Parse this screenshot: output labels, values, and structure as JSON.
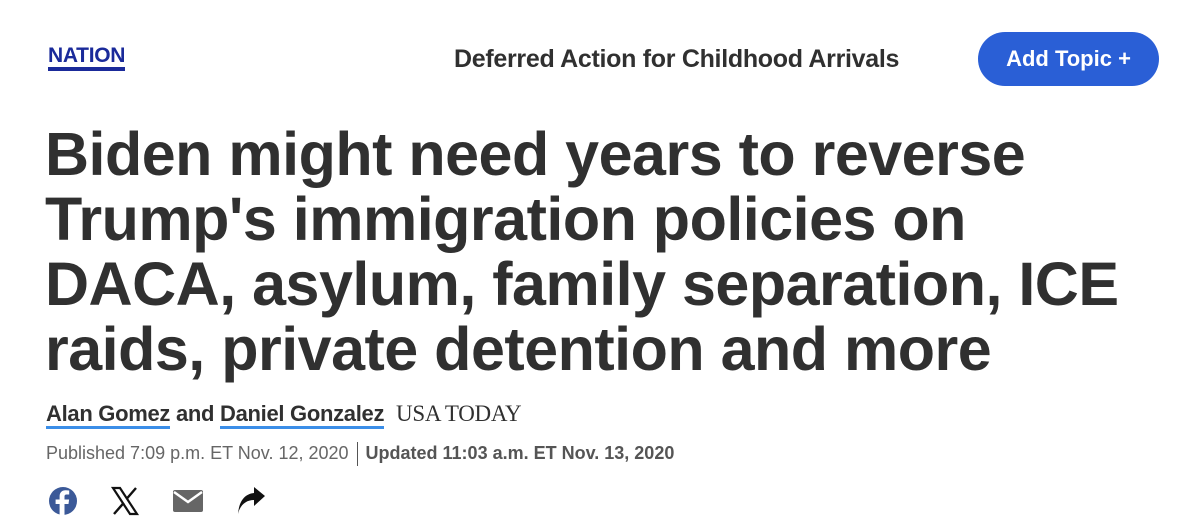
{
  "header": {
    "section": "NATION",
    "topic": "Deferred Action for Childhood Arrivals",
    "add_topic_label": "Add Topic +"
  },
  "article": {
    "headline_lines": [
      "Biden might need years to reverse",
      "Trump's immigration policies on",
      "DACA, asylum, family separation, ICE",
      "raids, private detention and more"
    ],
    "authors": [
      "Alan Gomez",
      "Daniel Gonzalez"
    ],
    "author_joiner": "and",
    "publication": "USA TODAY",
    "published": "Published 7:09 p.m. ET Nov. 12, 2020",
    "updated": "Updated 11:03 a.m. ET Nov. 13, 2020"
  },
  "share": {
    "icons": [
      "facebook-icon",
      "x-icon",
      "email-icon",
      "share-icon"
    ]
  },
  "colors": {
    "section": "#1a2a9a",
    "button": "#2a5fd6",
    "author_underline": "#3b8ee8",
    "facebook": "#3b5998"
  }
}
